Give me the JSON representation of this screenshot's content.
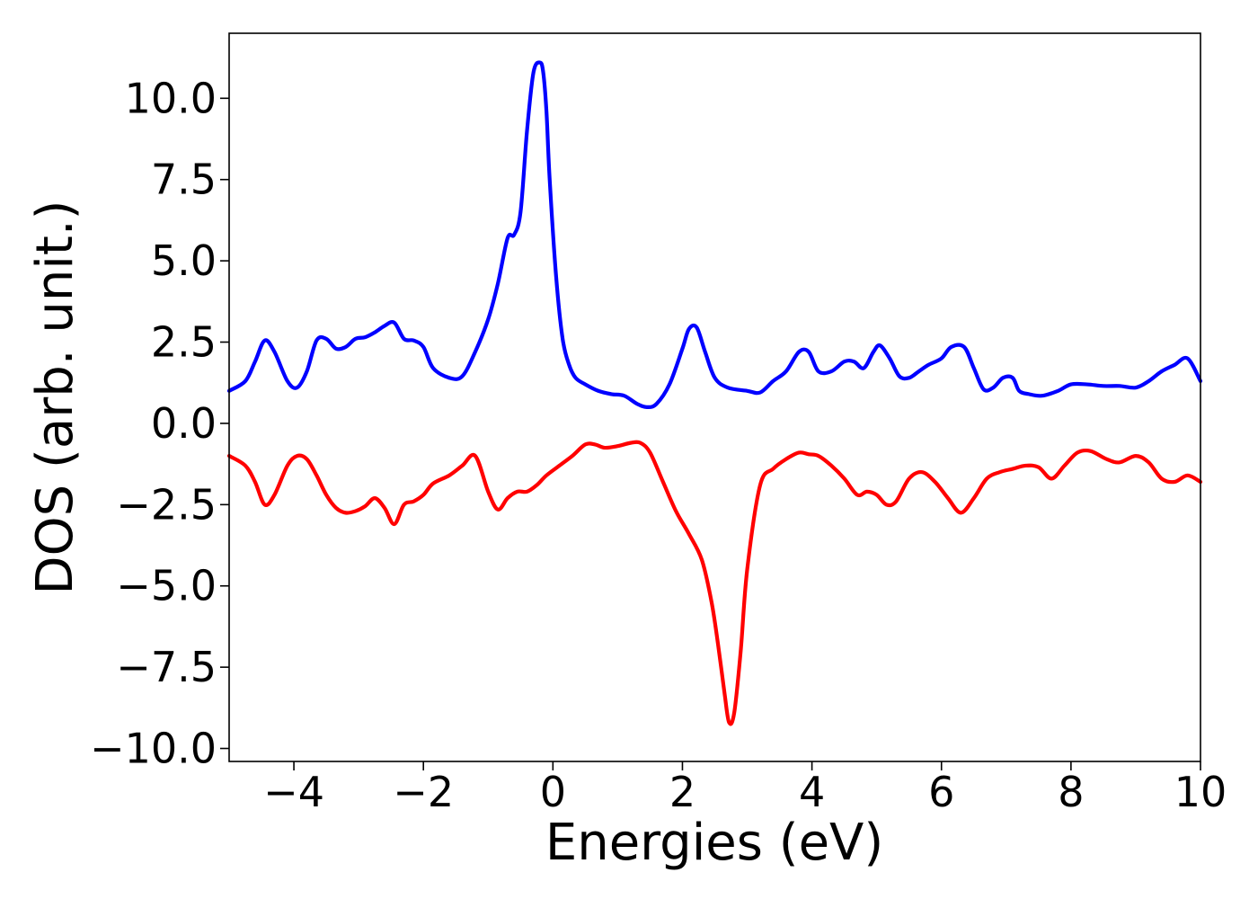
{
  "chart_data": {
    "type": "line",
    "title": "",
    "xlabel": "Energies (eV)",
    "ylabel": "DOS (arb. unit.)",
    "xlim": [
      -5,
      10
    ],
    "ylim": [
      -10.4,
      12.0
    ],
    "xticks": [
      -4,
      -2,
      0,
      2,
      4,
      6,
      8,
      10
    ],
    "xtick_labels": [
      "−4",
      "−2",
      "0",
      "2",
      "4",
      "6",
      "8",
      "10"
    ],
    "yticks": [
      10.0,
      7.5,
      5.0,
      2.5,
      0.0,
      -2.5,
      -5.0,
      -7.5,
      -10.0
    ],
    "ytick_labels": [
      "10.0",
      "7.5",
      "5.0",
      "2.5",
      "0.0",
      "−2.5",
      "−5.0",
      "−7.5",
      "−10.0"
    ],
    "grid": false,
    "legend": "none",
    "series": [
      {
        "color": "#0000ff",
        "x": [
          -5.0,
          -4.75,
          -4.6,
          -4.45,
          -4.3,
          -4.1,
          -3.95,
          -3.8,
          -3.65,
          -3.5,
          -3.35,
          -3.2,
          -3.05,
          -2.9,
          -2.75,
          -2.6,
          -2.45,
          -2.3,
          -2.15,
          -2.0,
          -1.85,
          -1.6,
          -1.4,
          -1.2,
          -1.0,
          -0.85,
          -0.7,
          -0.6,
          -0.5,
          -0.4,
          -0.3,
          -0.2,
          -0.15,
          -0.1,
          -0.05,
          0.05,
          0.15,
          0.25,
          0.35,
          0.5,
          0.7,
          0.9,
          1.1,
          1.3,
          1.45,
          1.6,
          1.8,
          2.0,
          2.1,
          2.22,
          2.35,
          2.5,
          2.7,
          3.0,
          3.2,
          3.4,
          3.6,
          3.8,
          3.95,
          4.1,
          4.3,
          4.5,
          4.65,
          4.8,
          4.95,
          5.05,
          5.2,
          5.35,
          5.5,
          5.65,
          5.8,
          6.0,
          6.15,
          6.35,
          6.5,
          6.65,
          6.8,
          6.95,
          7.1,
          7.2,
          7.35,
          7.55,
          7.8,
          8.0,
          8.25,
          8.5,
          8.75,
          9.0,
          9.2,
          9.4,
          9.6,
          9.8,
          10.0
        ],
        "y": [
          1.0,
          1.3,
          1.9,
          2.55,
          2.2,
          1.3,
          1.1,
          1.6,
          2.55,
          2.6,
          2.3,
          2.35,
          2.6,
          2.65,
          2.8,
          3.0,
          3.1,
          2.6,
          2.55,
          2.35,
          1.7,
          1.4,
          1.45,
          2.2,
          3.2,
          4.3,
          5.7,
          5.8,
          6.5,
          9.0,
          10.8,
          11.1,
          10.8,
          9.6,
          7.5,
          4.5,
          2.6,
          1.8,
          1.4,
          1.2,
          1.0,
          0.9,
          0.85,
          0.6,
          0.5,
          0.6,
          1.2,
          2.3,
          2.9,
          2.95,
          2.2,
          1.4,
          1.1,
          1.0,
          0.95,
          1.3,
          1.6,
          2.2,
          2.2,
          1.6,
          1.6,
          1.9,
          1.9,
          1.7,
          2.2,
          2.4,
          2.0,
          1.45,
          1.4,
          1.6,
          1.8,
          2.0,
          2.35,
          2.35,
          1.7,
          1.05,
          1.1,
          1.4,
          1.4,
          1.0,
          0.9,
          0.85,
          1.0,
          1.2,
          1.2,
          1.15,
          1.15,
          1.1,
          1.3,
          1.6,
          1.8,
          2.0,
          1.3
        ]
      },
      {
        "color": "#ff0000",
        "x": [
          -5.0,
          -4.75,
          -4.6,
          -4.45,
          -4.3,
          -4.1,
          -3.95,
          -3.8,
          -3.65,
          -3.5,
          -3.35,
          -3.2,
          -3.05,
          -2.9,
          -2.75,
          -2.6,
          -2.45,
          -2.3,
          -2.15,
          -2.0,
          -1.85,
          -1.6,
          -1.4,
          -1.2,
          -1.0,
          -0.85,
          -0.7,
          -0.55,
          -0.4,
          -0.25,
          -0.1,
          0.1,
          0.3,
          0.5,
          0.65,
          0.8,
          1.0,
          1.2,
          1.35,
          1.5,
          1.7,
          1.9,
          2.1,
          2.3,
          2.45,
          2.55,
          2.65,
          2.72,
          2.8,
          2.9,
          3.0,
          3.2,
          3.4,
          3.6,
          3.8,
          3.95,
          4.1,
          4.3,
          4.5,
          4.7,
          4.85,
          5.0,
          5.15,
          5.3,
          5.5,
          5.7,
          5.9,
          6.1,
          6.3,
          6.5,
          6.7,
          6.9,
          7.1,
          7.3,
          7.5,
          7.7,
          7.9,
          8.1,
          8.3,
          8.55,
          8.75,
          9.0,
          9.2,
          9.4,
          9.6,
          9.8,
          10.0
        ],
        "y": [
          -1.0,
          -1.3,
          -1.8,
          -2.5,
          -2.2,
          -1.3,
          -1.0,
          -1.1,
          -1.6,
          -2.2,
          -2.6,
          -2.75,
          -2.7,
          -2.55,
          -2.3,
          -2.6,
          -3.1,
          -2.5,
          -2.4,
          -2.2,
          -1.85,
          -1.6,
          -1.3,
          -1.0,
          -2.1,
          -2.65,
          -2.3,
          -2.1,
          -2.1,
          -1.9,
          -1.6,
          -1.3,
          -1.0,
          -0.65,
          -0.65,
          -0.75,
          -0.7,
          -0.6,
          -0.6,
          -0.9,
          -1.8,
          -2.7,
          -3.4,
          -4.2,
          -5.5,
          -6.8,
          -8.3,
          -9.2,
          -8.9,
          -7.0,
          -4.5,
          -1.9,
          -1.4,
          -1.1,
          -0.9,
          -0.95,
          -1.0,
          -1.3,
          -1.7,
          -2.2,
          -2.1,
          -2.2,
          -2.5,
          -2.4,
          -1.7,
          -1.5,
          -1.8,
          -2.3,
          -2.75,
          -2.3,
          -1.7,
          -1.5,
          -1.4,
          -1.3,
          -1.35,
          -1.7,
          -1.3,
          -0.9,
          -0.85,
          -1.1,
          -1.2,
          -1.0,
          -1.2,
          -1.7,
          -1.8,
          -1.6,
          -1.8
        ]
      }
    ]
  }
}
